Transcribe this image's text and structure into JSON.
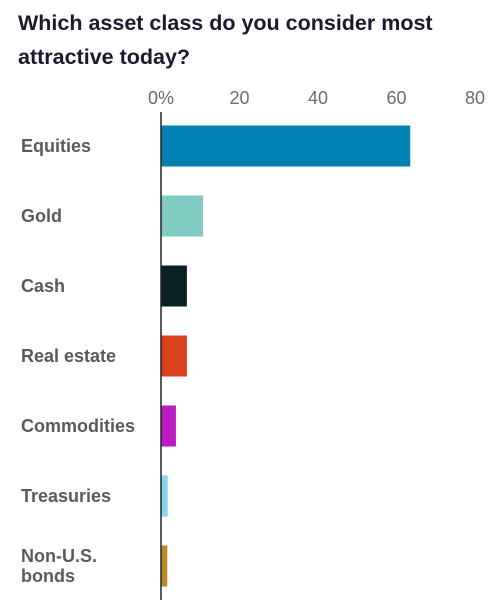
{
  "chart_data": {
    "type": "bar",
    "orientation": "horizontal",
    "title": "Which asset class do you consider most attractive today?",
    "xlabel": "",
    "ylabel": "",
    "xlim": [
      0,
      80
    ],
    "ticks": [
      "0%",
      "20",
      "40",
      "60",
      "80"
    ],
    "tick_values": [
      0,
      20,
      40,
      60,
      80
    ],
    "grid": false,
    "categories": [
      {
        "lines": [
          "Equities"
        ],
        "value": 63.5,
        "color": "#0282b2"
      },
      {
        "lines": [
          "Gold"
        ],
        "value": 10.7,
        "color": "#7fcbc4"
      },
      {
        "lines": [
          "Cash"
        ],
        "value": 6.6,
        "color": "#0a2226"
      },
      {
        "lines": [
          "Real estate"
        ],
        "value": 6.6,
        "color": "#db3f1c"
      },
      {
        "lines": [
          "Commodities"
        ],
        "value": 3.8,
        "color": "#bb1dc0"
      },
      {
        "lines": [
          "Treasuries"
        ],
        "value": 1.7,
        "color": "#82d7ec"
      },
      {
        "lines": [
          "Non-U.S.",
          "bonds"
        ],
        "value": 1.6,
        "color": "#b88a28"
      }
    ]
  }
}
